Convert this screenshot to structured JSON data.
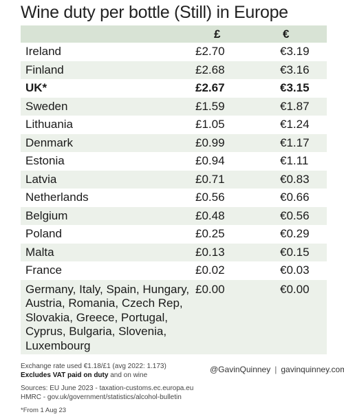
{
  "title": "Wine duty per bottle (Still) in Europe",
  "table": {
    "headers": [
      "",
      "£",
      "€"
    ],
    "rows": [
      {
        "country": "Ireland",
        "gbp": "£2.70",
        "eur": "€3.19"
      },
      {
        "country": "Finland",
        "gbp": "£2.68",
        "eur": "€3.16"
      },
      {
        "country": "UK*",
        "gbp": "£2.67",
        "eur": "€3.15",
        "bold": true
      },
      {
        "country": "Sweden",
        "gbp": "£1.59",
        "eur": "€1.87"
      },
      {
        "country": "Lithuania",
        "gbp": "£1.05",
        "eur": "€1.24"
      },
      {
        "country": "Denmark",
        "gbp": "£0.99",
        "eur": "€1.17"
      },
      {
        "country": "Estonia",
        "gbp": "£0.94",
        "eur": "€1.11"
      },
      {
        "country": "Latvia",
        "gbp": "£0.71",
        "eur": "€0.83"
      },
      {
        "country": "Netherlands",
        "gbp": "£0.56",
        "eur": "€0.66"
      },
      {
        "country": "Belgium",
        "gbp": "£0.48",
        "eur": "€0.56"
      },
      {
        "country": "Poland",
        "gbp": "£0.25",
        "eur": "€0.29"
      },
      {
        "country": "Malta",
        "gbp": "£0.13",
        "eur": "€0.15"
      },
      {
        "country": "France",
        "gbp": "£0.02",
        "eur": "€0.03"
      },
      {
        "country": "Germany, Italy, Spain, Hungary, Austria, Romania, Czech Rep, Slovakia, Greece, Portugal, Cyprus, Bulgaria, Slovenia, Luxembourg",
        "gbp": "£0.00",
        "eur": "€0.00"
      }
    ]
  },
  "footer": {
    "exchange": "Exchange rate used €1.18/£1  (avg 2022: 1.173)",
    "excludes_bold": "Excludes VAT paid on duty",
    "excludes_rest": " and on wine",
    "sources1": "Sources: EU June 2023 - taxation-customs.ec.europa.eu",
    "sources2": "HMRC - gov.uk/government/statistics/alcohol-bulletin",
    "note": "*From 1 Aug 23"
  },
  "credit": {
    "handle": "@GavinQuinney",
    "separator": "|",
    "site": "gavinquinney.com"
  },
  "colors": {
    "header_bg": "#d8e3d5",
    "row_shade": "#ecf1ea"
  }
}
